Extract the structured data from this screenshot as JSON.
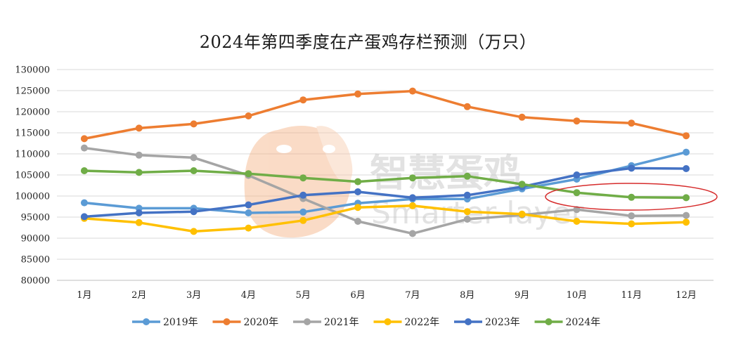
{
  "chart_data": {
    "type": "line",
    "title": "2024年第四季度在产蛋鸡存栏预测（万只）",
    "xlabel": "",
    "ylabel": "",
    "categories": [
      "1月",
      "2月",
      "3月",
      "4月",
      "5月",
      "6月",
      "7月",
      "8月",
      "9月",
      "10月",
      "11月",
      "12月"
    ],
    "ylim": [
      80000,
      130000
    ],
    "yticks": [
      80000,
      85000,
      90000,
      95000,
      100000,
      105000,
      110000,
      115000,
      120000,
      125000,
      130000
    ],
    "grid": true,
    "legend_position": "bottom",
    "series": [
      {
        "name": "2019年",
        "color": "#5B9BD5",
        "values": [
          98400,
          97100,
          97100,
          96000,
          96200,
          98300,
          99300,
          99300,
          101700,
          104000,
          107200,
          110400
        ]
      },
      {
        "name": "2020年",
        "color": "#ED7D31",
        "values": [
          113600,
          116100,
          117100,
          119000,
          122800,
          124200,
          124900,
          121200,
          118700,
          117800,
          117300,
          114300
        ]
      },
      {
        "name": "2021年",
        "color": "#A5A5A5",
        "values": [
          111400,
          109700,
          109100,
          104900,
          99400,
          94000,
          91100,
          94500,
          95500,
          96800,
          95300,
          95400
        ]
      },
      {
        "name": "2022年",
        "color": "#FFC000",
        "values": [
          94700,
          93700,
          91600,
          92400,
          94200,
          97300,
          97700,
          96300,
          95700,
          94000,
          93400,
          93800
        ]
      },
      {
        "name": "2023年",
        "color": "#4472C4",
        "values": [
          95100,
          96000,
          96300,
          97900,
          100200,
          101000,
          99600,
          100200,
          102200,
          105000,
          106600,
          106500
        ]
      },
      {
        "name": "2024年",
        "color": "#70AD47",
        "values": [
          106000,
          105600,
          106000,
          105300,
          104300,
          103400,
          104300,
          104700,
          102800,
          100800,
          99700,
          99600
        ]
      }
    ],
    "annotations": [
      {
        "type": "ellipse",
        "color": "#D62C2C",
        "around": "2024年 10月-12月"
      }
    ],
    "watermark": {
      "text": "智慧蛋鸡",
      "subtext": "Smarter layer"
    }
  }
}
